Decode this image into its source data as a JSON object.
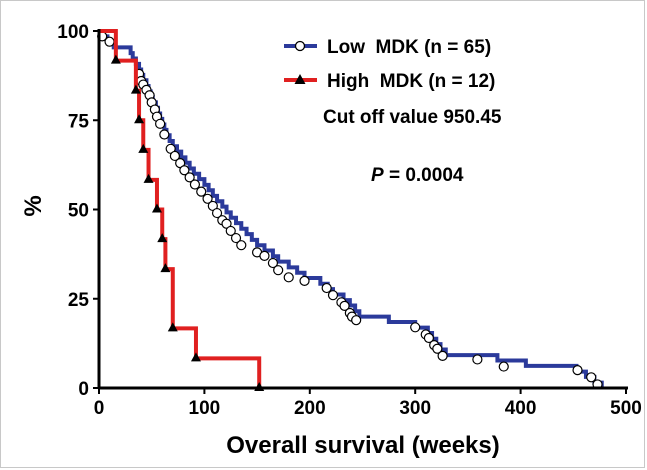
{
  "chart_data": {
    "type": "line",
    "xlabel": "Overall survival (weeks)",
    "ylabel": "%",
    "xlim": [
      0,
      500
    ],
    "ylim": [
      0,
      100
    ],
    "xticks": [
      "0",
      "100",
      "200",
      "300",
      "400",
      "500"
    ],
    "yticks": [
      "0",
      "25",
      "50",
      "75",
      "100"
    ],
    "legend_position": "top-right",
    "series": [
      {
        "name": "Low  MDK (n = 65)",
        "color": "#2b3a9b",
        "marker": "open-circle",
        "steps": [
          [
            0,
            100
          ],
          [
            2,
            98.5
          ],
          [
            8,
            97
          ],
          [
            14,
            95.4
          ],
          [
            30,
            93.8
          ],
          [
            32,
            92.3
          ],
          [
            35,
            90.8
          ],
          [
            38,
            89.2
          ],
          [
            40,
            87.7
          ],
          [
            42,
            86.2
          ],
          [
            45,
            84.6
          ],
          [
            47,
            83.1
          ],
          [
            49,
            81.5
          ],
          [
            51,
            80
          ],
          [
            54,
            78.5
          ],
          [
            56,
            76.9
          ],
          [
            58,
            75.4
          ],
          [
            60,
            73.8
          ],
          [
            62,
            72.3
          ],
          [
            64,
            70.8
          ],
          [
            67,
            69.2
          ],
          [
            70,
            67.7
          ],
          [
            74,
            66.2
          ],
          [
            78,
            64.6
          ],
          [
            82,
            63.1
          ],
          [
            86,
            61.5
          ],
          [
            90,
            60
          ],
          [
            95,
            58.5
          ],
          [
            100,
            56.9
          ],
          [
            104,
            55.4
          ],
          [
            108,
            53.8
          ],
          [
            112,
            52.3
          ],
          [
            117,
            50.8
          ],
          [
            121,
            49.2
          ],
          [
            125,
            47.7
          ],
          [
            130,
            46.2
          ],
          [
            135,
            44.6
          ],
          [
            140,
            43.1
          ],
          [
            145,
            41.5
          ],
          [
            150,
            40
          ],
          [
            157,
            38.5
          ],
          [
            165,
            36.9
          ],
          [
            170,
            35.4
          ],
          [
            180,
            33.8
          ],
          [
            188,
            32.3
          ],
          [
            195,
            30.8
          ],
          [
            210,
            29.2
          ],
          [
            217,
            27.7
          ],
          [
            222,
            26.2
          ],
          [
            232,
            24.6
          ],
          [
            238,
            23.1
          ],
          [
            243,
            21.5
          ],
          [
            247,
            20
          ],
          [
            275,
            18.5
          ],
          [
            300,
            16.9
          ],
          [
            312,
            15.4
          ],
          [
            316,
            13.8
          ],
          [
            320,
            12.3
          ],
          [
            324,
            10.8
          ],
          [
            329,
            9.2
          ],
          [
            378,
            7.7
          ],
          [
            405,
            6.2
          ],
          [
            453,
            4.6
          ],
          [
            462,
            3.1
          ],
          [
            470,
            1.5
          ],
          [
            477,
            0
          ]
        ],
        "censored": [
          [
            3,
            98.5
          ],
          [
            10,
            97
          ],
          [
            38,
            88
          ],
          [
            40,
            86
          ],
          [
            42,
            85
          ],
          [
            45,
            83.5
          ],
          [
            48,
            82
          ],
          [
            50,
            80
          ],
          [
            53,
            78
          ],
          [
            55,
            76
          ],
          [
            58,
            74
          ],
          [
            62,
            71
          ],
          [
            68,
            67
          ],
          [
            72,
            65
          ],
          [
            77,
            63
          ],
          [
            81,
            61
          ],
          [
            86,
            59
          ],
          [
            91,
            57
          ],
          [
            97,
            55
          ],
          [
            103,
            53
          ],
          [
            108,
            51
          ],
          [
            112,
            49
          ],
          [
            117,
            47
          ],
          [
            121,
            46
          ],
          [
            125,
            44
          ],
          [
            130,
            42
          ],
          [
            135,
            40
          ],
          [
            150,
            38
          ],
          [
            157,
            37
          ],
          [
            165,
            35
          ],
          [
            170,
            33
          ],
          [
            180,
            31
          ],
          [
            195,
            30
          ],
          [
            216,
            28
          ],
          [
            222,
            26
          ],
          [
            230,
            24
          ],
          [
            233,
            23
          ],
          [
            238,
            21
          ],
          [
            240,
            20
          ],
          [
            244,
            19
          ],
          [
            300,
            17
          ],
          [
            310,
            15
          ],
          [
            313,
            14
          ],
          [
            318,
            12
          ],
          [
            321,
            11
          ],
          [
            326,
            9
          ],
          [
            359,
            8
          ],
          [
            384,
            6
          ],
          [
            454,
            5
          ],
          [
            467,
            3
          ],
          [
            473,
            1
          ]
        ]
      },
      {
        "name": "High  MDK (n = 12)",
        "color": "#e02020",
        "marker": "filled-triangle",
        "steps": [
          [
            0,
            100
          ],
          [
            16,
            91.7
          ],
          [
            35,
            83.3
          ],
          [
            38,
            75
          ],
          [
            42,
            66.7
          ],
          [
            47,
            58.3
          ],
          [
            55,
            50
          ],
          [
            60,
            41.7
          ],
          [
            63,
            33.3
          ],
          [
            70,
            16.7
          ],
          [
            92,
            8.3
          ],
          [
            152,
            0
          ]
        ],
        "markers": [
          [
            16,
            91.7
          ],
          [
            35,
            83.3
          ],
          [
            38,
            75
          ],
          [
            42,
            66.7
          ],
          [
            47,
            58.3
          ],
          [
            55,
            50
          ],
          [
            60,
            41.7
          ],
          [
            63,
            33.3
          ],
          [
            70,
            16.7
          ],
          [
            92,
            8.3
          ],
          [
            152,
            0
          ]
        ]
      }
    ],
    "annotations": [
      {
        "text": "Cut off value 950.45"
      },
      {
        "label": "P",
        "value": " = 0.0004"
      }
    ]
  }
}
